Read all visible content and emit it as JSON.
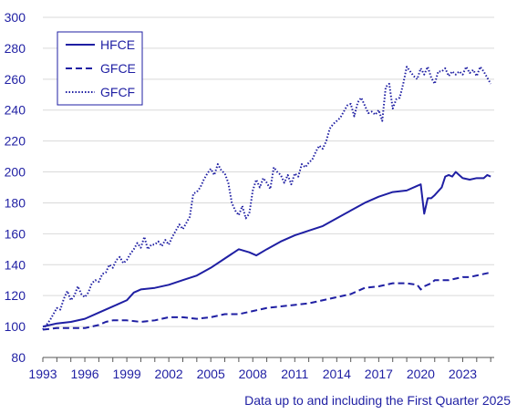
{
  "chart_data": {
    "type": "line",
    "ylim": [
      80,
      300
    ],
    "yticks": [
      "80",
      "100",
      "120",
      "140",
      "160",
      "180",
      "200",
      "220",
      "240",
      "260",
      "280",
      "300"
    ],
    "xlim": [
      1993.0,
      2025.25
    ],
    "xticks": [
      "1993",
      "1996",
      "1999",
      "2002",
      "2005",
      "2008",
      "2011",
      "2014",
      "2017",
      "2020",
      "2023"
    ],
    "grid": "horizontal",
    "legend_position": "top-left",
    "note": "Data up to and including the First Quarter 2025",
    "colors": {
      "series": "#1f1fa3",
      "grid": "#d9d9d9",
      "axis": "#555555"
    },
    "series": [
      {
        "name": "HFCE",
        "dash": "solid",
        "points": [
          [
            1993.0,
            100
          ],
          [
            1994.0,
            102
          ],
          [
            1995.0,
            103
          ],
          [
            1996.0,
            105
          ],
          [
            1997.0,
            109
          ],
          [
            1998.0,
            113
          ],
          [
            1999.0,
            117
          ],
          [
            1999.5,
            122
          ],
          [
            2000.0,
            124
          ],
          [
            2001.0,
            125
          ],
          [
            2002.0,
            127
          ],
          [
            2003.0,
            130
          ],
          [
            2004.0,
            133
          ],
          [
            2005.0,
            138
          ],
          [
            2006.0,
            144
          ],
          [
            2007.0,
            150
          ],
          [
            2007.75,
            148
          ],
          [
            2008.25,
            146
          ],
          [
            2009.0,
            150
          ],
          [
            2010.0,
            155
          ],
          [
            2011.0,
            159
          ],
          [
            2012.0,
            162
          ],
          [
            2013.0,
            165
          ],
          [
            2014.0,
            170
          ],
          [
            2015.0,
            175
          ],
          [
            2016.0,
            180
          ],
          [
            2017.0,
            184
          ],
          [
            2018.0,
            187
          ],
          [
            2019.0,
            188
          ],
          [
            2019.75,
            191
          ],
          [
            2020.0,
            192
          ],
          [
            2020.25,
            173
          ],
          [
            2020.5,
            183
          ],
          [
            2020.75,
            183
          ],
          [
            2021.0,
            185
          ],
          [
            2021.5,
            190
          ],
          [
            2021.75,
            197
          ],
          [
            2022.0,
            198
          ],
          [
            2022.25,
            197
          ],
          [
            2022.5,
            200
          ],
          [
            2022.75,
            198
          ],
          [
            2023.0,
            196
          ],
          [
            2023.5,
            195
          ],
          [
            2024.0,
            196
          ],
          [
            2024.5,
            196
          ],
          [
            2024.75,
            198
          ],
          [
            2025.0,
            197
          ]
        ]
      },
      {
        "name": "GFCE",
        "dash": "dashed",
        "points": [
          [
            1993.0,
            98
          ],
          [
            1994.0,
            99
          ],
          [
            1995.0,
            99
          ],
          [
            1996.0,
            99
          ],
          [
            1997.0,
            101
          ],
          [
            1997.5,
            103
          ],
          [
            1998.0,
            104
          ],
          [
            1999.0,
            104
          ],
          [
            2000.0,
            103
          ],
          [
            2001.0,
            104
          ],
          [
            2002.0,
            106
          ],
          [
            2003.0,
            106
          ],
          [
            2004.0,
            105
          ],
          [
            2005.0,
            106
          ],
          [
            2006.0,
            108
          ],
          [
            2007.0,
            108
          ],
          [
            2008.0,
            110
          ],
          [
            2009.0,
            112
          ],
          [
            2010.0,
            113
          ],
          [
            2011.0,
            114
          ],
          [
            2012.0,
            115
          ],
          [
            2013.0,
            117
          ],
          [
            2014.0,
            119
          ],
          [
            2015.0,
            121
          ],
          [
            2016.0,
            125
          ],
          [
            2017.0,
            126
          ],
          [
            2018.0,
            128
          ],
          [
            2019.0,
            128
          ],
          [
            2019.75,
            127
          ],
          [
            2020.0,
            124
          ],
          [
            2020.25,
            126
          ],
          [
            2020.75,
            128
          ],
          [
            2021.0,
            130
          ],
          [
            2022.0,
            130
          ],
          [
            2022.5,
            131
          ],
          [
            2023.0,
            132
          ],
          [
            2023.5,
            132
          ],
          [
            2024.0,
            133
          ],
          [
            2024.5,
            134
          ],
          [
            2025.0,
            135
          ]
        ]
      },
      {
        "name": "GFCF",
        "dash": "dotted",
        "points": [
          [
            1993.0,
            98
          ],
          [
            1993.25,
            101
          ],
          [
            1993.5,
            104
          ],
          [
            1993.75,
            108
          ],
          [
            1994.0,
            112
          ],
          [
            1994.25,
            111
          ],
          [
            1994.5,
            118
          ],
          [
            1994.75,
            123
          ],
          [
            1995.0,
            117
          ],
          [
            1995.25,
            120
          ],
          [
            1995.5,
            126
          ],
          [
            1995.75,
            121
          ],
          [
            1996.0,
            119
          ],
          [
            1996.25,
            122
          ],
          [
            1996.5,
            128
          ],
          [
            1996.75,
            130
          ],
          [
            1997.0,
            129
          ],
          [
            1997.25,
            134
          ],
          [
            1997.5,
            135
          ],
          [
            1997.75,
            140
          ],
          [
            1998.0,
            138
          ],
          [
            1998.25,
            143
          ],
          [
            1998.5,
            145
          ],
          [
            1998.75,
            141
          ],
          [
            1999.0,
            143
          ],
          [
            1999.25,
            147
          ],
          [
            1999.5,
            150
          ],
          [
            1999.75,
            154
          ],
          [
            2000.0,
            151
          ],
          [
            2000.25,
            158
          ],
          [
            2000.5,
            150
          ],
          [
            2000.75,
            153
          ],
          [
            2001.0,
            153
          ],
          [
            2001.25,
            155
          ],
          [
            2001.5,
            152
          ],
          [
            2001.75,
            156
          ],
          [
            2002.0,
            153
          ],
          [
            2002.25,
            158
          ],
          [
            2002.5,
            162
          ],
          [
            2002.75,
            166
          ],
          [
            2003.0,
            163
          ],
          [
            2003.25,
            167
          ],
          [
            2003.5,
            171
          ],
          [
            2003.75,
            186
          ],
          [
            2004.0,
            187
          ],
          [
            2004.25,
            190
          ],
          [
            2004.5,
            195
          ],
          [
            2004.75,
            199
          ],
          [
            2005.0,
            202
          ],
          [
            2005.25,
            198
          ],
          [
            2005.5,
            205
          ],
          [
            2005.75,
            201
          ],
          [
            2006.0,
            199
          ],
          [
            2006.25,
            193
          ],
          [
            2006.5,
            180
          ],
          [
            2006.75,
            175
          ],
          [
            2007.0,
            172
          ],
          [
            2007.25,
            178
          ],
          [
            2007.5,
            170
          ],
          [
            2007.75,
            173
          ],
          [
            2008.0,
            188
          ],
          [
            2008.25,
            195
          ],
          [
            2008.5,
            190
          ],
          [
            2008.75,
            196
          ],
          [
            2009.0,
            193
          ],
          [
            2009.25,
            189
          ],
          [
            2009.5,
            203
          ],
          [
            2009.75,
            200
          ],
          [
            2010.0,
            198
          ],
          [
            2010.25,
            193
          ],
          [
            2010.5,
            198
          ],
          [
            2010.75,
            192
          ],
          [
            2011.0,
            199
          ],
          [
            2011.25,
            197
          ],
          [
            2011.5,
            205
          ],
          [
            2011.75,
            203
          ],
          [
            2012.0,
            206
          ],
          [
            2012.25,
            208
          ],
          [
            2012.5,
            213
          ],
          [
            2012.75,
            217
          ],
          [
            2013.0,
            215
          ],
          [
            2013.25,
            220
          ],
          [
            2013.5,
            228
          ],
          [
            2013.75,
            231
          ],
          [
            2014.0,
            233
          ],
          [
            2014.25,
            235
          ],
          [
            2014.5,
            239
          ],
          [
            2014.75,
            243
          ],
          [
            2015.0,
            244
          ],
          [
            2015.25,
            236
          ],
          [
            2015.5,
            245
          ],
          [
            2015.75,
            248
          ],
          [
            2016.0,
            243
          ],
          [
            2016.25,
            238
          ],
          [
            2016.5,
            239
          ],
          [
            2016.75,
            237
          ],
          [
            2017.0,
            240
          ],
          [
            2017.25,
            233
          ],
          [
            2017.5,
            255
          ],
          [
            2017.75,
            257
          ],
          [
            2018.0,
            241
          ],
          [
            2018.25,
            247
          ],
          [
            2018.5,
            248
          ],
          [
            2018.75,
            257
          ],
          [
            2019.0,
            268
          ],
          [
            2019.25,
            265
          ],
          [
            2019.5,
            262
          ],
          [
            2019.75,
            260
          ],
          [
            2020.0,
            267
          ],
          [
            2020.25,
            263
          ],
          [
            2020.5,
            268
          ],
          [
            2020.75,
            261
          ],
          [
            2021.0,
            257
          ],
          [
            2021.25,
            265
          ],
          [
            2021.5,
            265
          ],
          [
            2021.75,
            267
          ],
          [
            2022.0,
            262
          ],
          [
            2022.25,
            265
          ],
          [
            2022.5,
            263
          ],
          [
            2022.75,
            265
          ],
          [
            2023.0,
            263
          ],
          [
            2023.25,
            268
          ],
          [
            2023.5,
            264
          ],
          [
            2023.75,
            266
          ],
          [
            2024.0,
            262
          ],
          [
            2024.25,
            268
          ],
          [
            2024.5,
            265
          ],
          [
            2024.75,
            261
          ],
          [
            2025.0,
            257
          ]
        ]
      }
    ]
  }
}
